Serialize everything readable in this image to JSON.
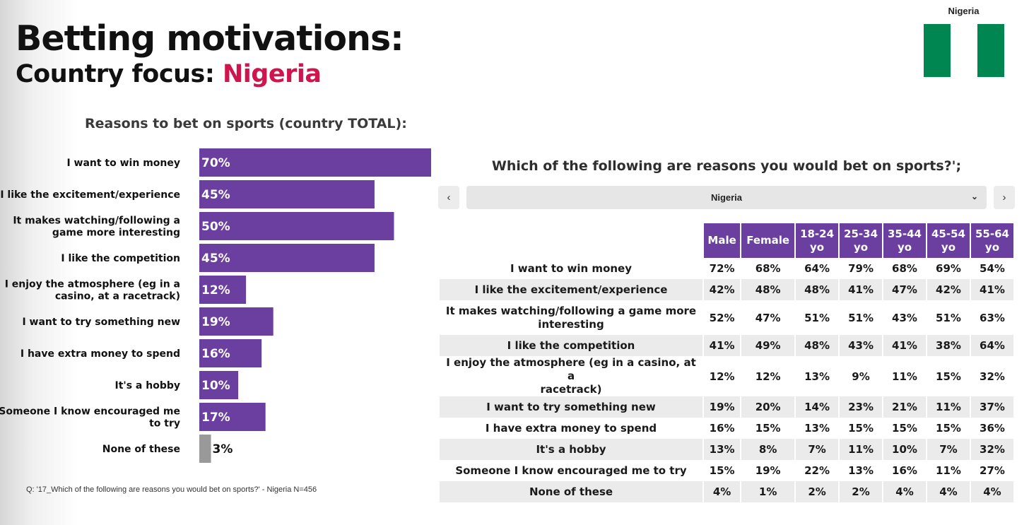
{
  "header": {
    "title": "Betting motivations:",
    "subtitle_prefix": "Country focus: ",
    "subtitle_country": "Nigeria",
    "flag_label": "Nigeria"
  },
  "flag": {
    "colors": [
      "#008751",
      "#ffffff",
      "#008751"
    ]
  },
  "left_chart": {
    "title": "Reasons to bet on sports (country TOTAL):",
    "footnote": "Q: '17_Which of the following are reasons you would bet on sports?' - Nigeria N=456"
  },
  "right_panel": {
    "question": "Which of the following are reasons you would bet on sports?';",
    "selected_country": "Nigeria",
    "prev_icon": "chevron-left-icon",
    "next_icon": "chevron-right-icon",
    "dropdown_icon": "chevron-down-icon"
  },
  "chart_data": [
    {
      "type": "bar",
      "orientation": "horizontal",
      "title": "Reasons to bet on sports (country TOTAL):",
      "categories": [
        "I want to win money",
        "I like the excitement/experience",
        "It makes watching/following a game more interesting",
        "I like the competition",
        "I enjoy the atmosphere (eg in a casino, at a racetrack)",
        "I want to try something new",
        "I have extra money to spend",
        "It's a hobby",
        "Someone I know encouraged me to try",
        "None of these"
      ],
      "label_lines": [
        [
          "I want to win money"
        ],
        [
          "I like the excitement/experience"
        ],
        [
          "It makes watching/following a",
          "game more interesting"
        ],
        [
          "I like the competition"
        ],
        [
          "I enjoy the atmosphere (eg in a",
          "casino, at a racetrack)"
        ],
        [
          "I want to try something new"
        ],
        [
          "I have extra money to spend"
        ],
        [
          "It's a hobby"
        ],
        [
          "Someone I know encouraged me",
          "to try"
        ],
        [
          "None of these"
        ]
      ],
      "values": [
        70,
        45,
        50,
        45,
        12,
        19,
        16,
        10,
        17,
        3
      ],
      "value_labels": [
        "70%",
        "45%",
        "50%",
        "45%",
        "12%",
        "19%",
        "16%",
        "10%",
        "17%",
        "3%"
      ],
      "colors": [
        "#6b3fa0",
        "#6b3fa0",
        "#6b3fa0",
        "#6b3fa0",
        "#6b3fa0",
        "#6b3fa0",
        "#6b3fa0",
        "#6b3fa0",
        "#6b3fa0",
        "#999999"
      ],
      "xlim": [
        0,
        100
      ],
      "grid": false
    },
    {
      "type": "table",
      "columns": [
        [
          "Male"
        ],
        [
          "Female"
        ],
        [
          "18-24",
          "yo"
        ],
        [
          "25-34",
          "yo"
        ],
        [
          "35-44",
          "yo"
        ],
        [
          "45-54",
          "yo"
        ],
        [
          "55-64",
          "yo"
        ]
      ],
      "rows": [
        {
          "label": [
            "I want to win money"
          ],
          "values": [
            "72%",
            "68%",
            "64%",
            "79%",
            "68%",
            "69%",
            "54%"
          ]
        },
        {
          "label": [
            "I like the excitement/experience"
          ],
          "values": [
            "42%",
            "48%",
            "48%",
            "41%",
            "47%",
            "42%",
            "41%"
          ]
        },
        {
          "label": [
            "It makes watching/following a game more",
            "interesting"
          ],
          "values": [
            "52%",
            "47%",
            "51%",
            "51%",
            "43%",
            "51%",
            "63%"
          ]
        },
        {
          "label": [
            "I like the competition"
          ],
          "values": [
            "41%",
            "49%",
            "48%",
            "43%",
            "41%",
            "38%",
            "64%"
          ]
        },
        {
          "label": [
            "I enjoy the atmosphere (eg in a casino, at a",
            "racetrack)"
          ],
          "values": [
            "12%",
            "12%",
            "13%",
            "9%",
            "11%",
            "15%",
            "32%"
          ]
        },
        {
          "label": [
            "I want to try something new"
          ],
          "values": [
            "19%",
            "20%",
            "14%",
            "23%",
            "21%",
            "11%",
            "37%"
          ]
        },
        {
          "label": [
            "I have extra money to spend"
          ],
          "values": [
            "16%",
            "15%",
            "13%",
            "15%",
            "15%",
            "15%",
            "36%"
          ]
        },
        {
          "label": [
            "It's a hobby"
          ],
          "values": [
            "13%",
            "8%",
            "7%",
            "11%",
            "10%",
            "7%",
            "32%"
          ]
        },
        {
          "label": [
            "Someone I know encouraged me to try"
          ],
          "values": [
            "15%",
            "19%",
            "22%",
            "13%",
            "16%",
            "11%",
            "27%"
          ]
        },
        {
          "label": [
            "None of these"
          ],
          "values": [
            "4%",
            "1%",
            "2%",
            "2%",
            "4%",
            "4%",
            "4%"
          ]
        }
      ]
    }
  ]
}
